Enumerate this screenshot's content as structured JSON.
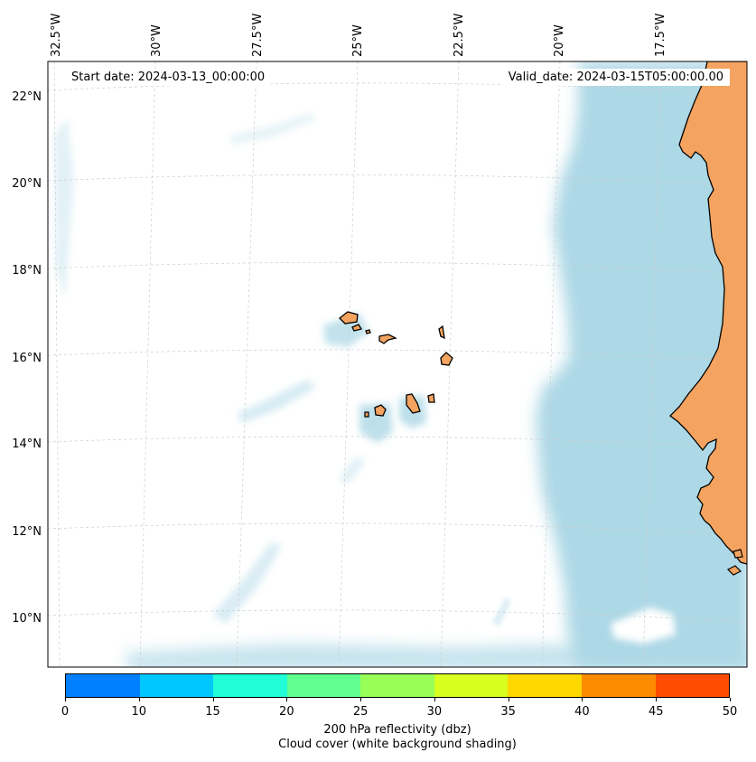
{
  "map": {
    "longitude_labels": [
      "32.5°W",
      "30°W",
      "27.5°W",
      "25°W",
      "22.5°W",
      "20°W",
      "17.5°W"
    ],
    "latitude_labels": [
      "22°N",
      "20°N",
      "18°N",
      "16°N",
      "14°N",
      "12°N",
      "10°N"
    ],
    "start_date": "Start date: 2024-03-13_00:00:00",
    "valid_date": "Valid_date: 2024-03-15T05:00:00.00",
    "colors": {
      "land": "#f4a460",
      "cloud": "#add8e6",
      "ocean": "#ffffff",
      "coastline": "#000000",
      "gridline": "#cccccc"
    }
  },
  "colorbar": {
    "colors": [
      "#0080ff",
      "#00c8ff",
      "#20ffd8",
      "#60ff90",
      "#98ff58",
      "#d8ff20",
      "#ffd800",
      "#ff8c00",
      "#ff4c00"
    ],
    "ticks": [
      "0",
      "10",
      "15",
      "20",
      "25",
      "30",
      "35",
      "40",
      "45",
      "50"
    ],
    "label_line1": "200 hPa reflectivity (dbz)",
    "label_line2": "Cloud cover (white background shading)"
  }
}
